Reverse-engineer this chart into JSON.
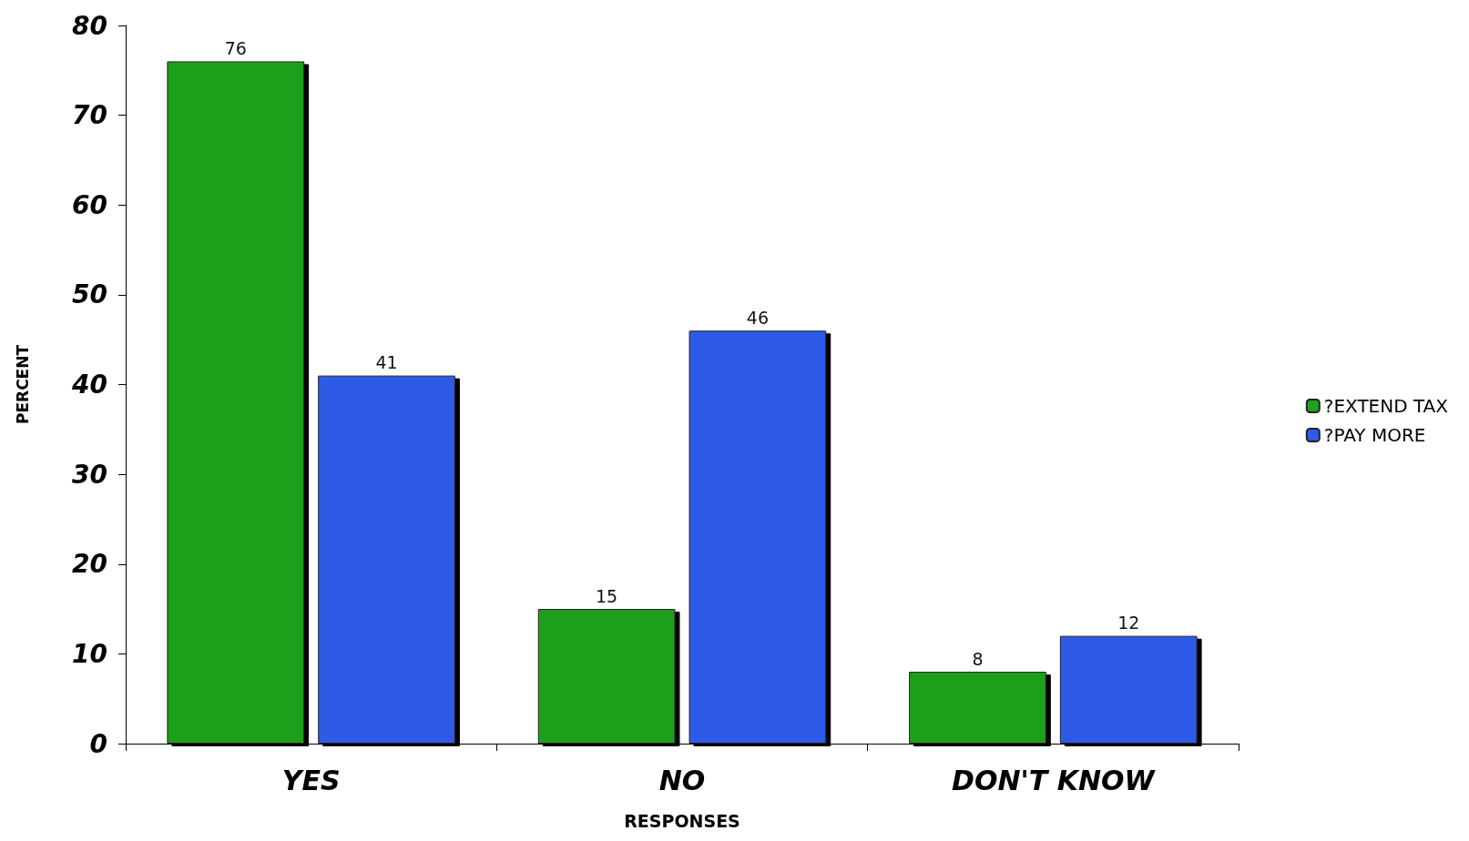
{
  "chart_data": {
    "type": "bar",
    "xlabel": "RESPONSES",
    "ylabel": "PERCENT",
    "categories": [
      "YES",
      "NO",
      "DON'T KNOW"
    ],
    "series": [
      {
        "name": "?EXTEND TAX",
        "color": "#1fa01f",
        "values": [
          76,
          15,
          8
        ]
      },
      {
        "name": "?PAY MORE",
        "color": "#2f5ae8",
        "values": [
          41,
          46,
          12
        ]
      }
    ],
    "ylim": [
      0,
      80
    ],
    "yticks": [
      0,
      10,
      20,
      30,
      40,
      50,
      60,
      70,
      80
    ],
    "grid": false,
    "legend": "right",
    "data_labels": true
  }
}
